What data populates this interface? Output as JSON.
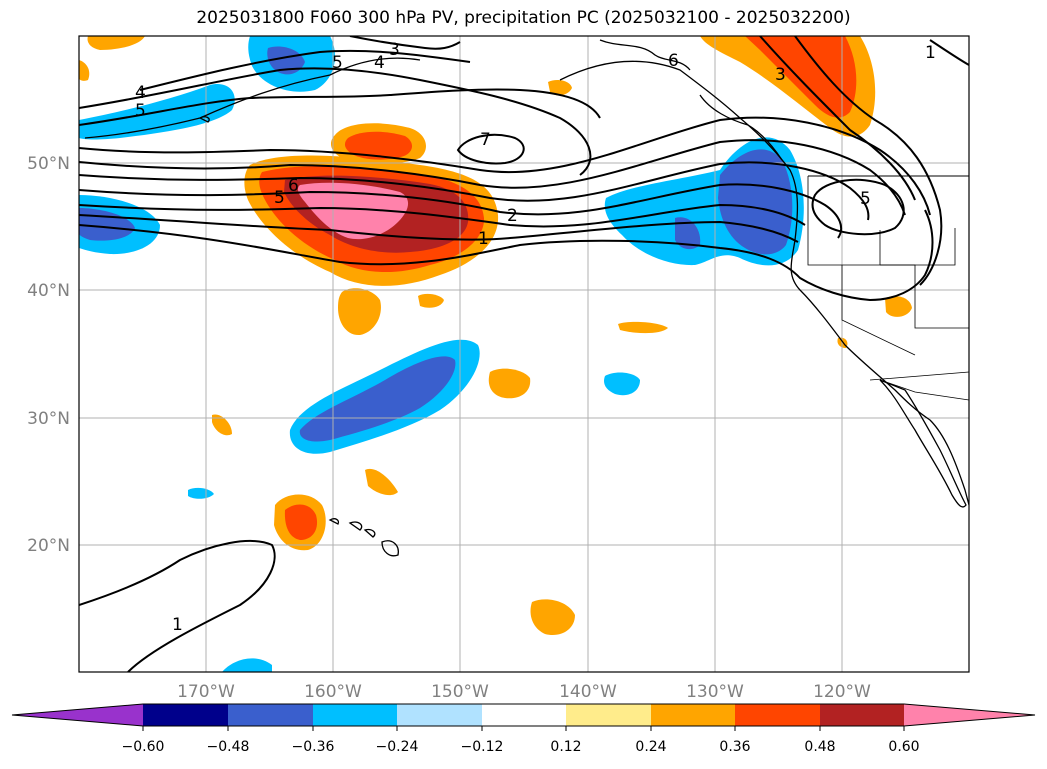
{
  "title": "2025031800 F060 300 hPa PV, precipitation PC (2025032100 - 2025032200)",
  "map": {
    "projection": "plate-carree",
    "lon_range": [
      -180,
      -110
    ],
    "lat_range": [
      10,
      60
    ],
    "lon_ticks": [
      {
        "value": -170,
        "label": "170°W"
      },
      {
        "value": -160,
        "label": "160°W"
      },
      {
        "value": -150,
        "label": "150°W"
      },
      {
        "value": -140,
        "label": "140°W"
      },
      {
        "value": -130,
        "label": "130°W"
      },
      {
        "value": -120,
        "label": "120°W"
      }
    ],
    "lat_ticks": [
      {
        "value": 20,
        "label": "20°N"
      },
      {
        "value": 30,
        "label": "30°N"
      },
      {
        "value": 40,
        "label": "40°N"
      },
      {
        "value": 50,
        "label": "50°N"
      }
    ],
    "grid": true,
    "contour_labels": [
      "1",
      "2",
      "3",
      "4",
      "5",
      "6",
      "7"
    ]
  },
  "colorbar": {
    "levels": [
      "−0.60",
      "−0.48",
      "−0.36",
      "−0.24",
      "−0.12",
      "0.12",
      "0.24",
      "0.36",
      "0.48",
      "0.60"
    ],
    "colors": [
      "#9932cc",
      "#00008b",
      "#3a5fcd",
      "#00bfff",
      "#b0e2ff",
      "#ffffff",
      "#ffec8b",
      "#ffa500",
      "#ff4500",
      "#b22222",
      "#ff82ab"
    ],
    "extend": "both"
  }
}
